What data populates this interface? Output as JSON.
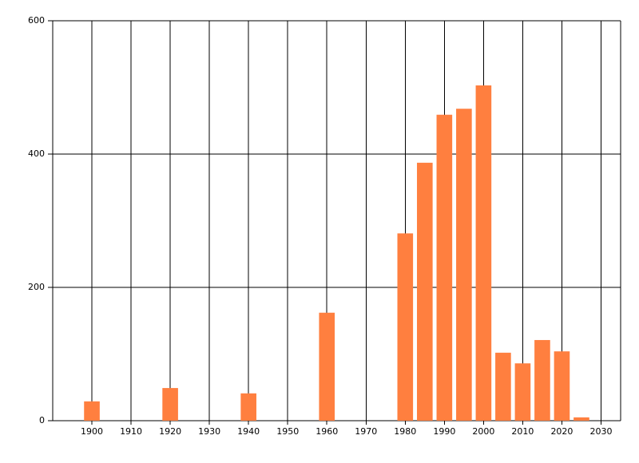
{
  "chart_data": {
    "type": "bar",
    "x": [
      1900,
      1920,
      1940,
      1960,
      1980,
      1985,
      1990,
      1995,
      2000,
      2005,
      2010,
      2015,
      2020,
      2025
    ],
    "values": [
      29,
      49,
      41,
      162,
      281,
      387,
      459,
      468,
      503,
      102,
      86,
      121,
      104,
      5
    ],
    "color": "#ff7f3f",
    "xlim": [
      1890,
      2035
    ],
    "xticks": [
      1900,
      1910,
      1920,
      1930,
      1940,
      1950,
      1960,
      1970,
      1980,
      1990,
      2000,
      2010,
      2020,
      2030
    ],
    "ylim": [
      0,
      600
    ],
    "yticks": [
      0,
      200,
      400,
      600
    ],
    "grid": true
  }
}
